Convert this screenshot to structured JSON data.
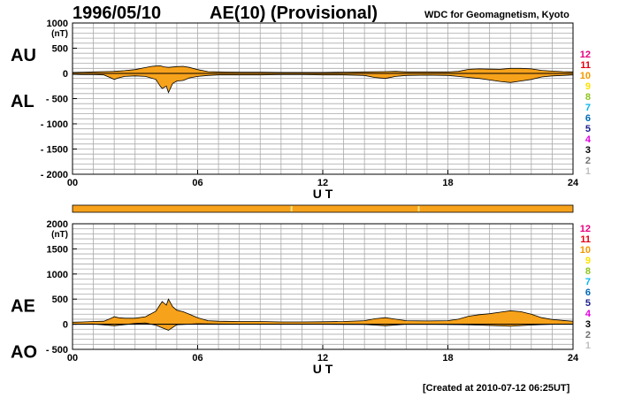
{
  "header": {
    "date": "1996/05/10",
    "title": "AE(10) (Provisional)",
    "source": "WDC for Geomagnetism, Kyoto"
  },
  "footer": {
    "created": "[Created at 2010-07-12 06:25UT]"
  },
  "colors": {
    "fill": "#f7a21b",
    "grid": "#aaaaaa",
    "bar": "#f7a21b",
    "bar_marker": "#f6e27a"
  },
  "station_legend": [
    {
      "label": "12",
      "color": "#e6007e"
    },
    {
      "label": "11",
      "color": "#e60012"
    },
    {
      "label": "10",
      "color": "#f39800"
    },
    {
      "label": "9",
      "color": "#ffe100"
    },
    {
      "label": "8",
      "color": "#8fc31f"
    },
    {
      "label": "7",
      "color": "#00b7ee"
    },
    {
      "label": "6",
      "color": "#0068b7"
    },
    {
      "label": "5",
      "color": "#1d2088"
    },
    {
      "label": "4",
      "color": "#e100e1"
    },
    {
      "label": "3",
      "color": "#000000"
    },
    {
      "label": "2",
      "color": "#707070"
    },
    {
      "label": "1",
      "color": "#c0c0c0"
    }
  ],
  "station_bar": {
    "markers_ut": [
      10.5,
      16.6
    ]
  },
  "chart_data": [
    {
      "type": "area",
      "upper_label": "AU",
      "lower_label": "AL",
      "unit": "(nT)",
      "xlabel": "U T",
      "xlim": [
        0,
        24
      ],
      "ylim": [
        -2000,
        1000
      ],
      "xticks": [
        0,
        6,
        12,
        18,
        24
      ],
      "xtick_labels": [
        "00",
        "06",
        "12",
        "18",
        "24"
      ],
      "yticks": [
        1000,
        500,
        0,
        -500,
        -1000,
        -1500,
        -2000
      ],
      "ytick_labels": [
        "1000",
        "500",
        "0",
        "- 500",
        "- 1000",
        "- 1500",
        "- 2000"
      ],
      "grid": true,
      "series": [
        {
          "name": "AU",
          "x": [
            0,
            0.5,
            1,
            1.5,
            2,
            2.5,
            3,
            3.5,
            3.8,
            4,
            4.2,
            4.4,
            4.6,
            5,
            5.3,
            5.6,
            6,
            6.5,
            7,
            8,
            9,
            10,
            11,
            12,
            13,
            14,
            15,
            15.5,
            16,
            17,
            18,
            18.5,
            19,
            19.5,
            20,
            20.5,
            21,
            21.5,
            22,
            22.5,
            23,
            23.5,
            24
          ],
          "y": [
            20,
            25,
            30,
            35,
            40,
            55,
            75,
            115,
            140,
            145,
            150,
            130,
            120,
            135,
            140,
            120,
            75,
            35,
            30,
            25,
            25,
            20,
            20,
            20,
            25,
            30,
            35,
            40,
            30,
            30,
            30,
            40,
            80,
            90,
            85,
            80,
            100,
            100,
            90,
            60,
            45,
            35,
            30
          ]
        },
        {
          "name": "AL",
          "x": [
            0,
            0.5,
            1,
            1.5,
            1.8,
            2,
            2.2,
            2.5,
            3,
            3.5,
            4,
            4.2,
            4.3,
            4.5,
            4.6,
            4.8,
            5,
            5.3,
            5.6,
            6,
            6.5,
            7,
            8,
            9,
            10,
            11,
            12,
            13,
            14,
            14.5,
            15,
            15.5,
            16,
            17,
            18,
            18.5,
            19,
            19.5,
            20,
            20.5,
            21,
            21.5,
            22,
            22.5,
            23,
            23.5,
            24
          ],
          "y": [
            -20,
            -25,
            -25,
            -30,
            -80,
            -120,
            -90,
            -60,
            -50,
            -60,
            -120,
            -250,
            -300,
            -250,
            -380,
            -200,
            -150,
            -140,
            -90,
            -60,
            -40,
            -30,
            -30,
            -30,
            -25,
            -25,
            -30,
            -30,
            -40,
            -80,
            -100,
            -60,
            -40,
            -35,
            -40,
            -60,
            -80,
            -100,
            -130,
            -160,
            -180,
            -150,
            -120,
            -70,
            -50,
            -40,
            -30
          ]
        }
      ]
    },
    {
      "type": "area",
      "upper_label": "AE",
      "lower_label": "AO",
      "unit": "(nT)",
      "xlabel": "U T",
      "xlim": [
        0,
        24
      ],
      "ylim": [
        -500,
        2000
      ],
      "xticks": [
        0,
        6,
        12,
        18,
        24
      ],
      "xtick_labels": [
        "00",
        "06",
        "12",
        "18",
        "24"
      ],
      "yticks": [
        2000,
        1500,
        1000,
        500,
        0,
        -500
      ],
      "ytick_labels": [
        "2000",
        "1500",
        "1000",
        "500",
        "0",
        "- 500"
      ],
      "grid": true,
      "series": [
        {
          "name": "AE",
          "x": [
            0,
            0.5,
            1,
            1.5,
            1.8,
            2,
            2.2,
            2.5,
            3,
            3.5,
            4,
            4.2,
            4.3,
            4.5,
            4.6,
            4.8,
            5,
            5.3,
            5.6,
            6,
            6.5,
            7,
            8,
            9,
            10,
            11,
            12,
            13,
            14,
            14.5,
            15,
            15.5,
            16,
            17,
            18,
            18.5,
            19,
            19.5,
            20,
            20.5,
            21,
            21.5,
            22,
            22.5,
            23,
            23.5,
            24
          ],
          "y": [
            40,
            45,
            55,
            60,
            110,
            150,
            130,
            120,
            120,
            150,
            260,
            390,
            450,
            380,
            500,
            350,
            280,
            250,
            200,
            130,
            70,
            60,
            55,
            55,
            45,
            45,
            50,
            55,
            70,
            110,
            130,
            100,
            70,
            65,
            70,
            100,
            160,
            190,
            210,
            240,
            270,
            250,
            200,
            130,
            95,
            75,
            60
          ]
        },
        {
          "name": "AO",
          "x": [
            0,
            1,
            2,
            3,
            3.5,
            4,
            4.3,
            4.6,
            5,
            6,
            8,
            10,
            12,
            14,
            15,
            16,
            18,
            19,
            20,
            21,
            22,
            23,
            24
          ],
          "y": [
            0,
            5,
            -30,
            15,
            25,
            -20,
            -70,
            -120,
            -10,
            10,
            0,
            0,
            0,
            -5,
            -30,
            0,
            -5,
            -10,
            -25,
            -40,
            -15,
            0,
            0
          ]
        }
      ]
    }
  ]
}
